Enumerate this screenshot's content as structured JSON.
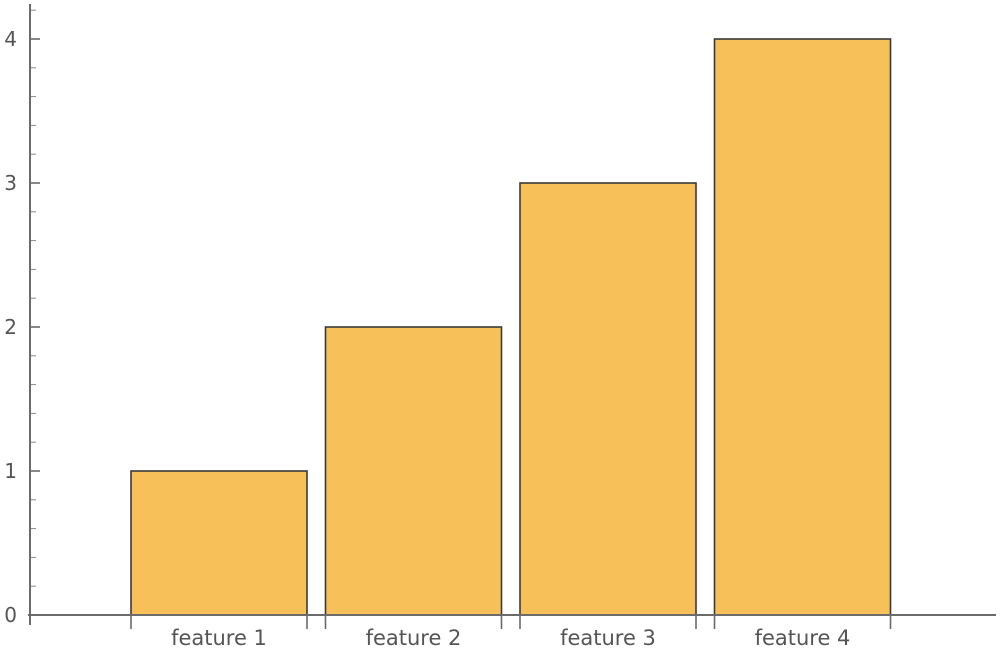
{
  "chart_data": {
    "type": "bar",
    "title": "",
    "xlabel": "",
    "ylabel": "",
    "categories": [
      "feature 1",
      "feature 2",
      "feature 3",
      "feature 4"
    ],
    "values": [
      1,
      2,
      3,
      4
    ],
    "ylim": [
      0,
      4
    ],
    "y_ticks": [
      "0",
      "1",
      "2",
      "3",
      "4"
    ],
    "grid": false,
    "legend": "none",
    "colors": {
      "bar_fill": "#F8C058",
      "bar_edge": "#3A3A3A",
      "axis": "#6B6B6B",
      "label": "#555555"
    }
  }
}
